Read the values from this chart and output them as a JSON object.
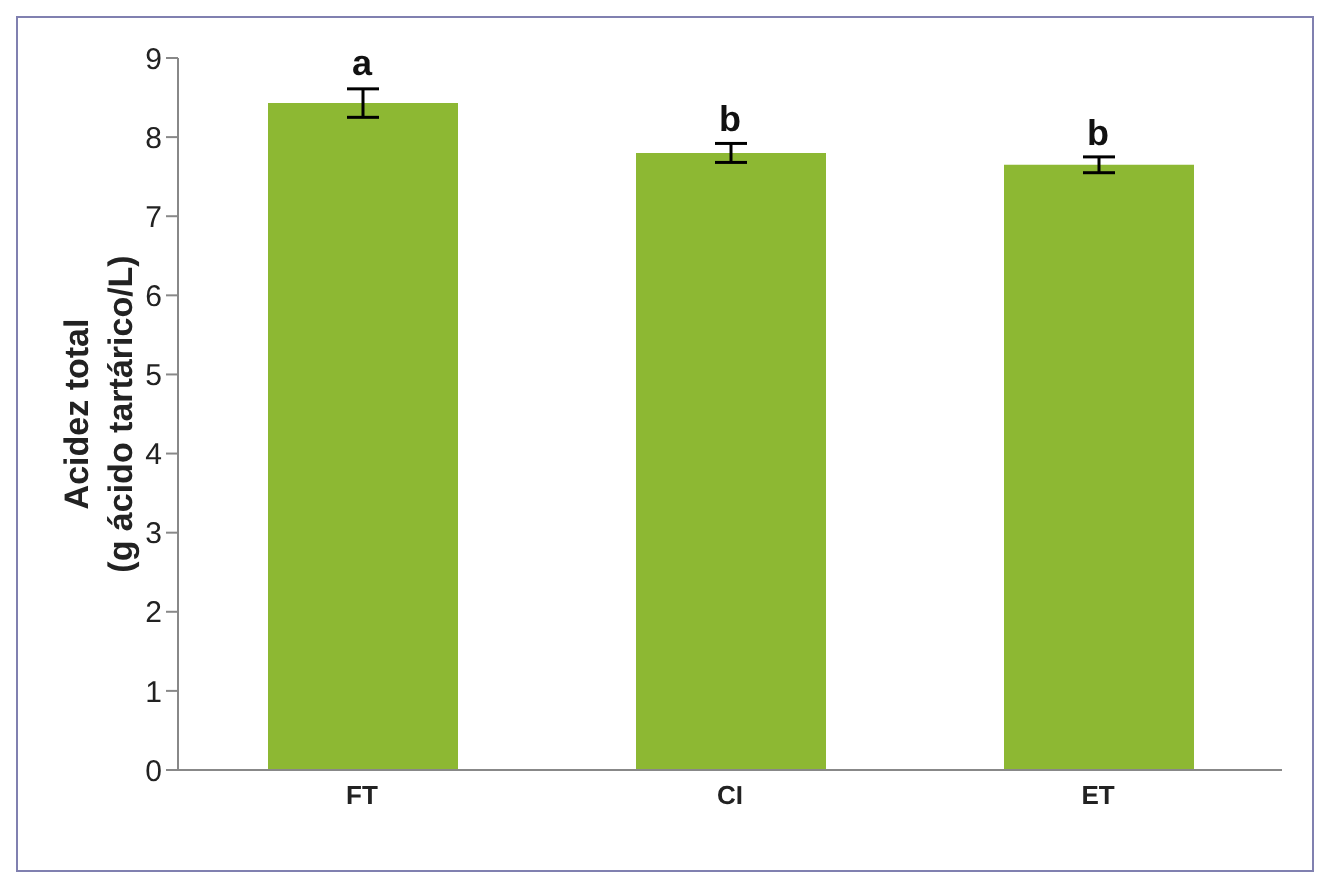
{
  "chart_data": {
    "type": "bar",
    "ylabel": "Acidez total\n(g ácido tartárico/L)",
    "categories": [
      "FT",
      "CI",
      "ET"
    ],
    "values": [
      8.43,
      7.8,
      7.65
    ],
    "errors": [
      0.18,
      0.12,
      0.1
    ],
    "color": "#8db833",
    "ylim": [
      0,
      9
    ],
    "yticks": [
      0,
      1,
      2,
      3,
      4,
      5,
      6,
      7,
      8,
      9
    ],
    "grid": false,
    "legend": false,
    "annotations": [
      {
        "text": "a",
        "x": "FT",
        "y": 8.63
      },
      {
        "text": "b",
        "x": "CI",
        "y": 7.92
      },
      {
        "text": "b",
        "x": "ET",
        "y": 7.75
      }
    ]
  }
}
